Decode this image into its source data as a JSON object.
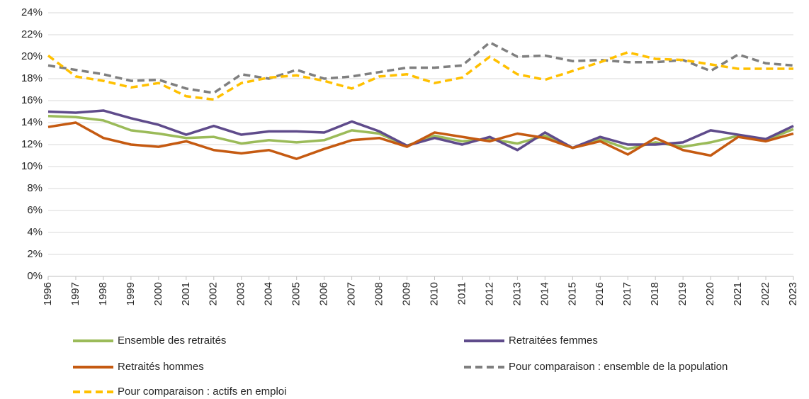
{
  "chart_data": {
    "type": "line",
    "categories": [
      "1996",
      "1997",
      "1998",
      "1999",
      "2000",
      "2001",
      "2002",
      "2003",
      "2004",
      "2005",
      "2006",
      "2007",
      "2008",
      "2009",
      "2010",
      "2011",
      "2012",
      "2013",
      "2014",
      "2015",
      "2016",
      "2017",
      "2018",
      "2019",
      "2020",
      "2021",
      "2022",
      "2023"
    ],
    "series": [
      {
        "name": "Ensemble des retraités",
        "color": "#9bbb59",
        "dashed": false,
        "values": [
          14.6,
          14.5,
          14.2,
          13.3,
          13.0,
          12.6,
          12.7,
          12.1,
          12.4,
          12.2,
          12.4,
          13.3,
          13.0,
          11.9,
          12.8,
          12.3,
          12.5,
          12.1,
          12.8,
          11.7,
          12.5,
          11.6,
          12.2,
          11.8,
          12.2,
          12.8,
          12.4,
          13.4
        ]
      },
      {
        "name": "Retraitées femmes",
        "color": "#5f4b8b",
        "dashed": false,
        "values": [
          15.0,
          14.9,
          15.1,
          14.4,
          13.8,
          12.9,
          13.7,
          12.9,
          13.2,
          13.2,
          13.1,
          14.1,
          13.2,
          11.9,
          12.6,
          12.0,
          12.7,
          11.5,
          13.1,
          11.7,
          12.7,
          12.0,
          12.0,
          12.2,
          13.3,
          12.9,
          12.5,
          13.7
        ]
      },
      {
        "name": "Retraités hommes",
        "color": "#c55a11",
        "dashed": false,
        "values": [
          13.6,
          14.0,
          12.6,
          12.0,
          11.8,
          12.3,
          11.5,
          11.2,
          11.5,
          10.7,
          11.6,
          12.4,
          12.6,
          11.8,
          13.1,
          12.7,
          12.3,
          13.0,
          12.6,
          11.7,
          12.3,
          11.1,
          12.6,
          11.5,
          11.0,
          12.7,
          12.3,
          13.0
        ]
      },
      {
        "name": "Pour comparaison : ensemble de la population",
        "color": "#7f7f7f",
        "dashed": true,
        "values": [
          19.2,
          18.8,
          18.4,
          17.8,
          17.9,
          17.1,
          16.7,
          18.4,
          18.0,
          18.8,
          18.0,
          18.2,
          18.6,
          19.0,
          19.0,
          19.2,
          21.3,
          20.0,
          20.1,
          19.6,
          19.7,
          19.5,
          19.5,
          19.7,
          18.7,
          20.2,
          19.4,
          19.2
        ]
      },
      {
        "name": "Pour comparaison : actifs en emploi",
        "color": "#ffc000",
        "dashed": true,
        "values": [
          20.1,
          18.2,
          17.8,
          17.2,
          17.6,
          16.4,
          16.1,
          17.6,
          18.1,
          18.3,
          17.8,
          17.1,
          18.2,
          18.4,
          17.6,
          18.1,
          20.0,
          18.4,
          17.9,
          18.7,
          19.5,
          20.4,
          19.8,
          19.7,
          19.3,
          18.9,
          18.9,
          18.9
        ]
      }
    ],
    "ylim": [
      0,
      24
    ],
    "yticks": [
      {
        "value": 0,
        "label": "0%"
      },
      {
        "value": 2,
        "label": "2%"
      },
      {
        "value": 4,
        "label": "4%"
      },
      {
        "value": 6,
        "label": "6%"
      },
      {
        "value": 8,
        "label": "8%"
      },
      {
        "value": 10,
        "label": "10%"
      },
      {
        "value": 12,
        "label": "12%"
      },
      {
        "value": 14,
        "label": "14%"
      },
      {
        "value": 16,
        "label": "16%"
      },
      {
        "value": 18,
        "label": "18%"
      },
      {
        "value": 20,
        "label": "20%"
      },
      {
        "value": 22,
        "label": "22%"
      },
      {
        "value": 24,
        "label": "24%"
      }
    ],
    "grid": true
  }
}
